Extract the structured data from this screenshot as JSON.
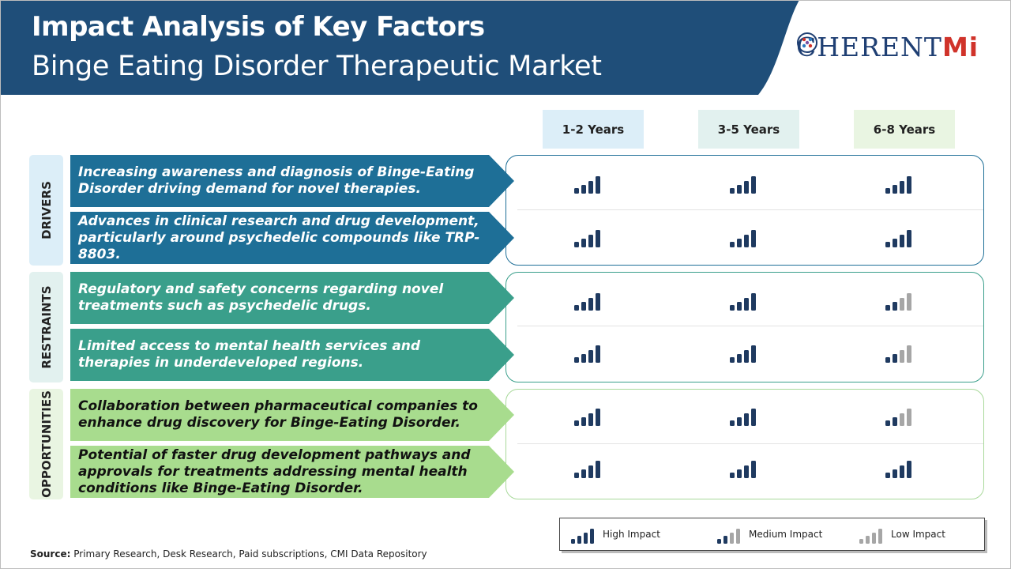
{
  "header": {
    "title": "Impact Analysis of Key Factors",
    "subtitle": "Binge Eating Disorder Therapeutic Market",
    "logo": {
      "prefix": "C",
      "middle": "HERENT",
      "accent": "Mi"
    }
  },
  "columns": [
    "1-2 Years",
    "3-5 Years",
    "6-8 Years"
  ],
  "column_colors": [
    "#dceef8",
    "#e2f1ef",
    "#e9f5e2"
  ],
  "sections": [
    {
      "label": "DRIVERS",
      "tab_color": "#dceef8",
      "border_color": "#1e6f97",
      "factor_color": "#1e6f97",
      "text_color": "#ffffff",
      "rows": [
        {
          "text": "Increasing awareness and diagnosis of Binge-Eating Disorder driving demand for novel therapies.",
          "impact": [
            "high",
            "high",
            "high"
          ]
        },
        {
          "text": "Advances in clinical research and drug development, particularly around psychedelic compounds like TRP-8803.",
          "impact": [
            "high",
            "high",
            "high"
          ]
        }
      ]
    },
    {
      "label": "RESTRAINTS",
      "tab_color": "#e2f1ef",
      "border_color": "#3a9f8b",
      "factor_color": "#3a9f8b",
      "text_color": "#ffffff",
      "rows": [
        {
          "text": "Regulatory and safety concerns regarding novel treatments such as psychedelic drugs.",
          "impact": [
            "high",
            "high",
            "medium"
          ]
        },
        {
          "text": "Limited access to mental health services and therapies in underdeveloped regions.",
          "impact": [
            "high",
            "high",
            "medium"
          ]
        }
      ]
    },
    {
      "label": "OPPORTUNITIES",
      "tab_color": "#e9f5e2",
      "border_color": "#a8d99a",
      "factor_color": "#a8dc8e",
      "text_color": "#111111",
      "rows": [
        {
          "text": "Collaboration between pharmaceutical companies to enhance drug discovery for Binge-Eating Disorder.",
          "impact": [
            "high",
            "high",
            "medium"
          ]
        },
        {
          "text": "Potential of faster drug development pathways and approvals for treatments addressing mental health conditions like Binge-Eating Disorder.",
          "impact": [
            "high",
            "high",
            "high"
          ]
        }
      ]
    }
  ],
  "legend": {
    "high": "High Impact",
    "medium": "Medium Impact",
    "low": "Low Impact"
  },
  "source": {
    "label": "Source:",
    "text": "Primary Research, Desk Research, Paid subscriptions, CMI Data Repository"
  },
  "colors": {
    "header_blue": "#1f4e79",
    "bar_dark": "#1f3a60",
    "bar_light": "#a6a6a6"
  }
}
